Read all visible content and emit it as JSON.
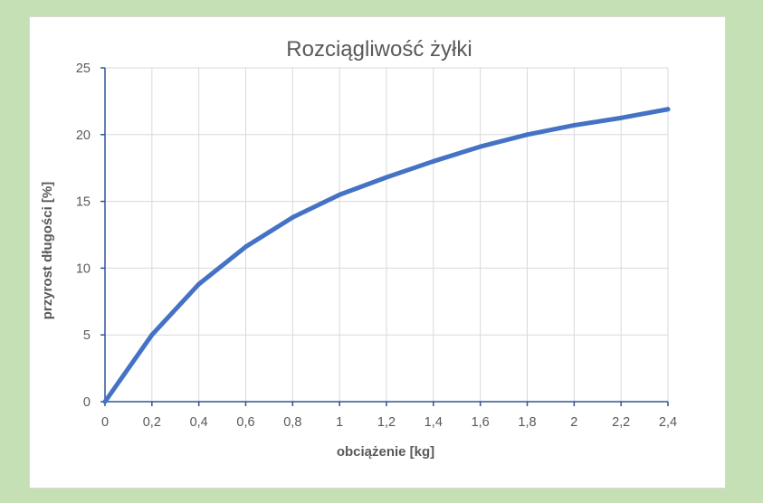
{
  "chart_data": {
    "type": "line",
    "title": "Rozciągliwość żyłki",
    "xlabel": "obciążenie [kg]",
    "ylabel": "przyrost długości [%]",
    "x": [
      0,
      0.2,
      0.4,
      0.6,
      0.8,
      1,
      1.2,
      1.4,
      1.6,
      1.8,
      2,
      2.2,
      2.4
    ],
    "x_tick_labels": [
      "0",
      "0,2",
      "0,4",
      "0,6",
      "0,8",
      "1",
      "1,2",
      "1,4",
      "1,6",
      "1,8",
      "2",
      "2,2",
      "2,4"
    ],
    "y_ticks": [
      0,
      5,
      10,
      15,
      20,
      25
    ],
    "y_tick_labels": [
      "0",
      "5",
      "10",
      "15",
      "20",
      "25"
    ],
    "series": [
      {
        "values": [
          0,
          5.0,
          8.8,
          11.6,
          13.8,
          15.5,
          16.8,
          18.0,
          19.1,
          20.0,
          20.7,
          21.25,
          21.9
        ],
        "color": "#4472c4"
      }
    ],
    "xlim": [
      0,
      2.4
    ],
    "ylim": [
      0,
      25
    ],
    "grid": true,
    "legend": "none",
    "colors": {
      "background": "#c5e0b4",
      "plot_area": "#ffffff",
      "gridline": "#d9d9d9",
      "axis": "#2f5597",
      "text": "#595959",
      "line": "#4472c4"
    }
  }
}
